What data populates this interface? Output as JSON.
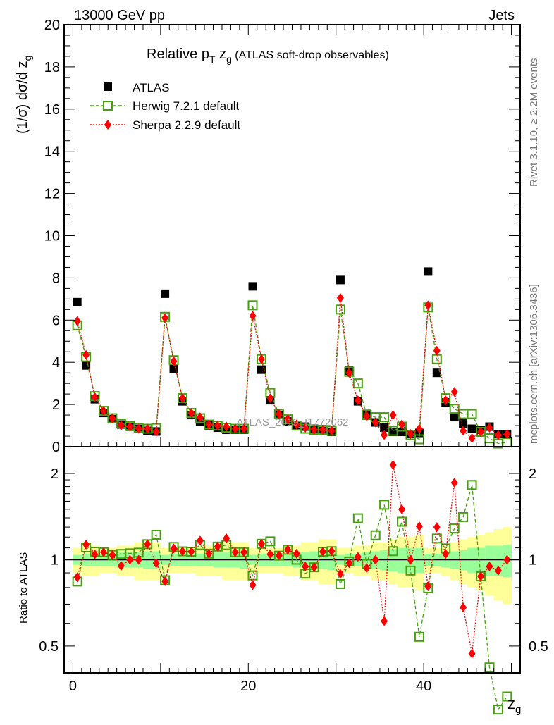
{
  "header": {
    "left": "13000 GeV pp",
    "right": "Jets"
  },
  "side_labels": {
    "rivet": "Rivet 3.1.10, ≥ 2.2M events",
    "mcplots": "mcplots.cern.ch [arXiv:1306.3436]"
  },
  "watermark": "ATLAS_2019_I1772062",
  "chart_data": {
    "type": "scatter",
    "title_main": "Relative p",
    "title_sub_T": "T",
    "title_z": " z",
    "title_sub_g": "g",
    "title_rest": " (ATLAS soft-drop observables)",
    "ylabel": "(1/σ) dσ/d z",
    "ylabel_sub": "g",
    "xlabel": "z",
    "xlabel_sub": "g",
    "ratio_ylabel": "Ratio to ATLAS",
    "xlim": [
      -1,
      51
    ],
    "ylim": [
      0,
      20
    ],
    "ratio_ylim": [
      0.403,
      2.48
    ],
    "ratio_scale": "log",
    "xticks": [
      0,
      20,
      40
    ],
    "yticks": [
      0,
      2,
      4,
      6,
      8,
      10,
      12,
      14,
      16,
      18,
      20
    ],
    "ratio_ticks": [
      0.5,
      1,
      2
    ],
    "ratio_tick_labels": [
      "0.5",
      "1",
      "2"
    ],
    "legend_position": "top-left",
    "series": [
      {
        "name": "ATLAS",
        "style": "black-square",
        "color": "#000000",
        "values": [
          6.85,
          3.85,
          2.25,
          1.6,
          1.3,
          1.05,
          0.95,
          0.85,
          0.75,
          0.72,
          7.25,
          3.7,
          2.15,
          1.5,
          1.2,
          1.0,
          0.9,
          0.8,
          0.8,
          0.8,
          7.6,
          3.65,
          2.2,
          1.5,
          1.2,
          1.0,
          0.95,
          0.85,
          0.75,
          0.7,
          7.9,
          3.6,
          2.15,
          1.55,
          1.15,
          0.9,
          0.7,
          0.7,
          0.6,
          0.65,
          8.3,
          3.5,
          2.1,
          1.4,
          1.1,
          0.85,
          0.8,
          0.95,
          0.6,
          0.6
        ]
      },
      {
        "name": "Herwig 7.2.1 default",
        "style": "green-open-square-dashed",
        "color": "#44a00c",
        "values": [
          5.75,
          4.25,
          2.4,
          1.7,
          1.35,
          1.1,
          1.0,
          0.9,
          0.85,
          0.88,
          6.15,
          4.1,
          2.3,
          1.6,
          1.35,
          1.05,
          1.0,
          0.9,
          0.85,
          0.85,
          6.7,
          4.15,
          2.55,
          1.55,
          1.3,
          1.0,
          0.85,
          0.8,
          0.8,
          0.75,
          6.5,
          3.55,
          3.0,
          1.5,
          1.4,
          1.4,
          0.75,
          0.95,
          0.55,
          0.35,
          6.6,
          4.15,
          2.3,
          1.8,
          1.55,
          1.55,
          0.7,
          0.4,
          0.15,
          0.2
        ]
      },
      {
        "name": "Sherpa 2.2.9 default",
        "style": "red-diamond-dotted",
        "color": "#ff0000",
        "values": [
          5.95,
          4.35,
          2.35,
          1.7,
          1.35,
          1.0,
          0.95,
          0.85,
          0.85,
          0.7,
          6.1,
          4.05,
          2.3,
          1.6,
          1.4,
          1.05,
          1.0,
          0.95,
          0.85,
          0.85,
          6.2,
          4.15,
          2.3,
          1.55,
          1.3,
          1.05,
          0.9,
          0.8,
          0.8,
          0.75,
          7.05,
          3.5,
          2.2,
          1.45,
          1.15,
          0.55,
          1.5,
          1.05,
          0.6,
          0.85,
          6.7,
          4.55,
          2.2,
          2.6,
          0.75,
          0.4,
          0.7,
          0.9,
          0.55,
          0.6
        ]
      }
    ],
    "ratio_band_outer": [
      0.1,
      0.12,
      0.12,
      0.1,
      0.1,
      0.12,
      0.12,
      0.15,
      0.15,
      0.15,
      0.1,
      0.1,
      0.1,
      0.1,
      0.12,
      0.12,
      0.12,
      0.15,
      0.15,
      0.15,
      0.1,
      0.1,
      0.1,
      0.1,
      0.12,
      0.12,
      0.15,
      0.15,
      0.18,
      0.18,
      0.1,
      0.1,
      0.12,
      0.12,
      0.15,
      0.15,
      0.18,
      0.2,
      0.2,
      0.22,
      0.1,
      0.1,
      0.12,
      0.15,
      0.18,
      0.2,
      0.22,
      0.25,
      0.28,
      0.3
    ],
    "ratio_band_inner": [
      0.04,
      0.05,
      0.05,
      0.05,
      0.05,
      0.06,
      0.06,
      0.06,
      0.07,
      0.07,
      0.04,
      0.05,
      0.05,
      0.05,
      0.05,
      0.05,
      0.06,
      0.06,
      0.06,
      0.07,
      0.04,
      0.05,
      0.05,
      0.05,
      0.05,
      0.06,
      0.06,
      0.07,
      0.07,
      0.08,
      0.04,
      0.05,
      0.05,
      0.06,
      0.07,
      0.08,
      0.09,
      0.1,
      0.1,
      0.1,
      0.05,
      0.05,
      0.06,
      0.07,
      0.08,
      0.1,
      0.1,
      0.12,
      0.12,
      0.13
    ]
  }
}
